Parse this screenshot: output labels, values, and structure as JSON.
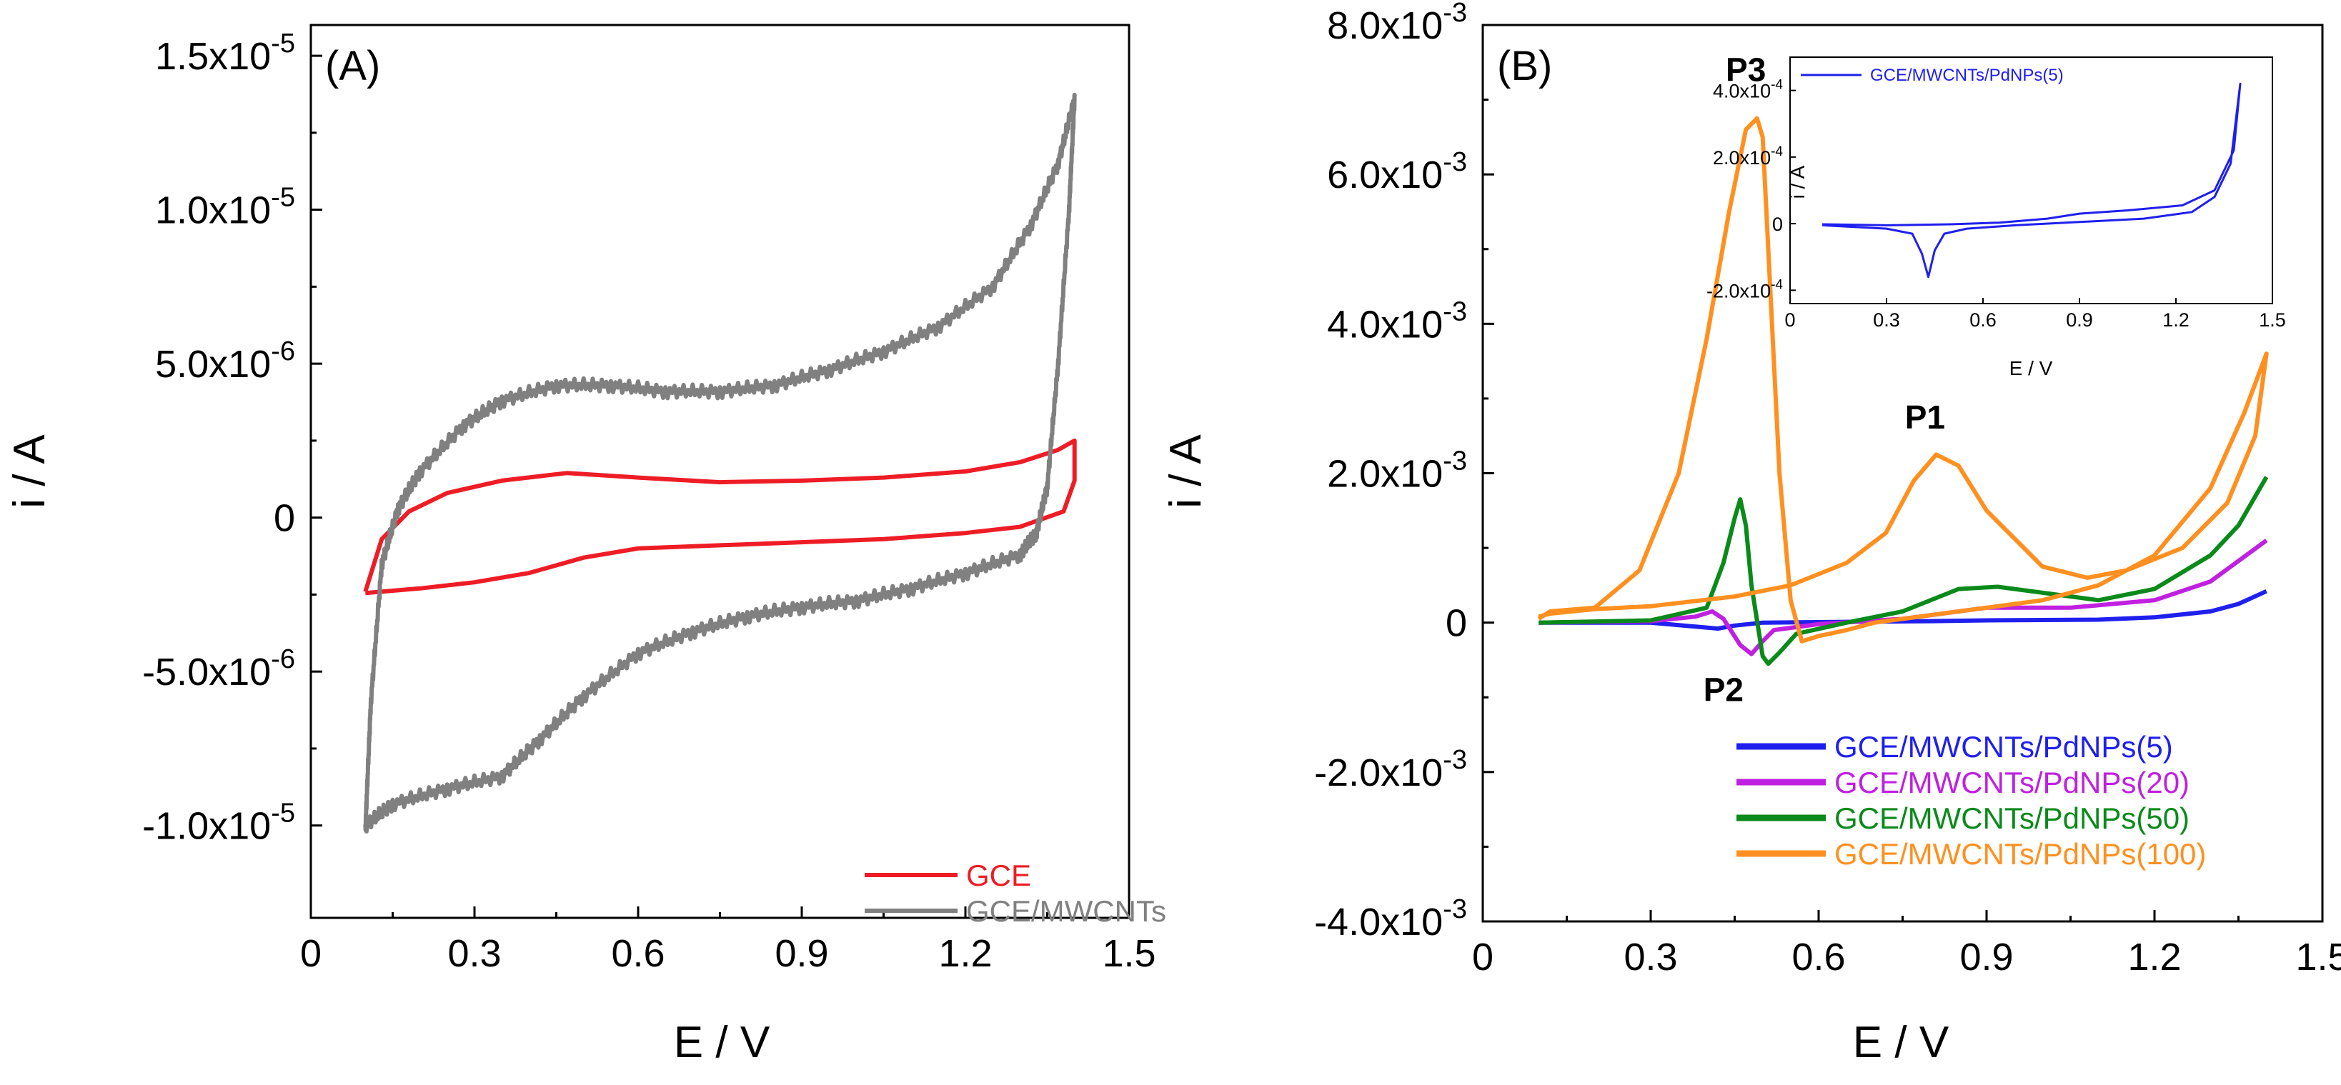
{
  "chart_data": [
    {
      "id": "A",
      "type": "line",
      "panel_label": "(A)",
      "xlabel": "E / V",
      "ylabel": "i / A",
      "xlim": [
        0,
        1.5
      ],
      "ylim": [
        -1.3e-05,
        1.6e-05
      ],
      "x_ticks": [
        0,
        0.3,
        0.6,
        0.9,
        1.2,
        1.5
      ],
      "x_tick_labels": [
        "0",
        "0.3",
        "0.6",
        "0.9",
        "1.2",
        "1.5"
      ],
      "y_ticks": [
        -1e-05,
        -5e-06,
        0,
        5e-06,
        1e-05,
        1.5e-05
      ],
      "y_tick_labels": [
        {
          "mantissa": "-1.0x10",
          "exp": "-5"
        },
        {
          "mantissa": "-5.0x10",
          "exp": "-6"
        },
        {
          "mantissa": "0",
          "exp": ""
        },
        {
          "mantissa": "5.0x10",
          "exp": "-6"
        },
        {
          "mantissa": "1.0x10",
          "exp": "-5"
        },
        {
          "mantissa": "1.5x10",
          "exp": "-5"
        }
      ],
      "legend_position": "bottom-right",
      "series": [
        {
          "name": "GCE",
          "color": "#ee1c25",
          "noise": 0,
          "points": [
            [
              0.1,
              -2.4e-06
            ],
            [
              0.13,
              -7e-07
            ],
            [
              0.18,
              2e-07
            ],
            [
              0.25,
              8e-07
            ],
            [
              0.35,
              1.2e-06
            ],
            [
              0.47,
              1.45e-06
            ],
            [
              0.6,
              1.3e-06
            ],
            [
              0.75,
              1.15e-06
            ],
            [
              0.9,
              1.2e-06
            ],
            [
              1.05,
              1.3e-06
            ],
            [
              1.2,
              1.5e-06
            ],
            [
              1.3,
              1.8e-06
            ],
            [
              1.37,
              2.2e-06
            ],
            [
              1.4,
              2.5e-06
            ],
            [
              1.4,
              1.2e-06
            ],
            [
              1.38,
              2e-07
            ],
            [
              1.3,
              -3e-07
            ],
            [
              1.2,
              -5e-07
            ],
            [
              1.05,
              -7e-07
            ],
            [
              0.9,
              -8e-07
            ],
            [
              0.75,
              -9e-07
            ],
            [
              0.6,
              -1e-06
            ],
            [
              0.5,
              -1.3e-06
            ],
            [
              0.4,
              -1.8e-06
            ],
            [
              0.3,
              -2.1e-06
            ],
            [
              0.2,
              -2.3e-06
            ],
            [
              0.1,
              -2.45e-06
            ]
          ]
        },
        {
          "name": "GCE/MWCNTs",
          "color": "#808080",
          "noise": 2.2e-07,
          "points": [
            [
              0.1,
              -1.01e-05
            ],
            [
              0.11,
              -6e-06
            ],
            [
              0.13,
              -1.5e-06
            ],
            [
              0.16,
              3e-07
            ],
            [
              0.2,
              1.5e-06
            ],
            [
              0.28,
              3e-06
            ],
            [
              0.35,
              3.8e-06
            ],
            [
              0.45,
              4.3e-06
            ],
            [
              0.55,
              4.3e-06
            ],
            [
              0.65,
              4.1e-06
            ],
            [
              0.75,
              4.1e-06
            ],
            [
              0.85,
              4.3e-06
            ],
            [
              0.95,
              4.8e-06
            ],
            [
              1.05,
              5.4e-06
            ],
            [
              1.15,
              6.2e-06
            ],
            [
              1.25,
              7.5e-06
            ],
            [
              1.32,
              9.5e-06
            ],
            [
              1.37,
              1.15e-05
            ],
            [
              1.4,
              1.36e-05
            ],
            [
              1.39,
              1e-05
            ],
            [
              1.37,
              5e-06
            ],
            [
              1.35,
              1e-06
            ],
            [
              1.33,
              -5e-07
            ],
            [
              1.3,
              -1.2e-06
            ],
            [
              1.2,
              -1.8e-06
            ],
            [
              1.1,
              -2.3e-06
            ],
            [
              1.0,
              -2.7e-06
            ],
            [
              0.9,
              -2.9e-06
            ],
            [
              0.8,
              -3.2e-06
            ],
            [
              0.7,
              -3.7e-06
            ],
            [
              0.6,
              -4.4e-06
            ],
            [
              0.5,
              -5.8e-06
            ],
            [
              0.42,
              -7.2e-06
            ],
            [
              0.35,
              -8.4e-06
            ],
            [
              0.25,
              -8.8e-06
            ],
            [
              0.15,
              -9.3e-06
            ],
            [
              0.1,
              -1e-05
            ]
          ]
        }
      ]
    },
    {
      "id": "B",
      "type": "line",
      "panel_label": "(B)",
      "xlabel": "E / V",
      "ylabel": "i / A",
      "xlim": [
        0,
        1.5
      ],
      "ylim": [
        -0.004,
        0.008
      ],
      "x_ticks": [
        0,
        0.3,
        0.6,
        0.9,
        1.2,
        1.5
      ],
      "x_tick_labels": [
        "0",
        "0.3",
        "0.6",
        "0.9",
        "1.2",
        "1.5"
      ],
      "y_ticks": [
        -0.004,
        -0.002,
        0,
        0.002,
        0.004,
        0.006,
        0.008
      ],
      "y_tick_labels": [
        {
          "mantissa": "-4.0x10",
          "exp": "-3"
        },
        {
          "mantissa": "-2.0x10",
          "exp": "-3"
        },
        {
          "mantissa": "0",
          "exp": ""
        },
        {
          "mantissa": "2.0x10",
          "exp": "-3"
        },
        {
          "mantissa": "4.0x10",
          "exp": "-3"
        },
        {
          "mantissa": "6.0x10",
          "exp": "-3"
        },
        {
          "mantissa": "8.0x10",
          "exp": "-3"
        }
      ],
      "legend_position": "bottom-right",
      "annotations": [
        {
          "text": "P3",
          "x": 0.47,
          "y": 0.00725
        },
        {
          "text": "P1",
          "x": 0.79,
          "y": 0.0026
        },
        {
          "text": "P2",
          "x": 0.43,
          "y": -0.00105
        }
      ],
      "series": [
        {
          "name": "GCE/MWCNTs/PdNPs(5)",
          "color": "#1f1fee",
          "points": [
            [
              0.1,
              0
            ],
            [
              0.3,
              0
            ],
            [
              0.42,
              -8e-05
            ],
            [
              0.45,
              -4e-05
            ],
            [
              0.5,
              0
            ],
            [
              0.8,
              2e-05
            ],
            [
              0.9,
              3e-05
            ],
            [
              1.1,
              4e-05
            ],
            [
              1.2,
              7e-05
            ],
            [
              1.3,
              0.00015
            ],
            [
              1.35,
              0.00025
            ],
            [
              1.4,
              0.00042
            ]
          ]
        },
        {
          "name": "GCE/MWCNTs/PdNPs(20)",
          "color": "#c020e0",
          "points": [
            [
              0.1,
              0
            ],
            [
              0.3,
              2e-05
            ],
            [
              0.38,
              8e-05
            ],
            [
              0.41,
              0.00015
            ],
            [
              0.43,
              5e-05
            ],
            [
              0.46,
              -0.0003
            ],
            [
              0.48,
              -0.00042
            ],
            [
              0.5,
              -0.00025
            ],
            [
              0.52,
              -0.0001
            ],
            [
              0.6,
              -2e-05
            ],
            [
              0.75,
              5e-05
            ],
            [
              0.9,
              0.0002
            ],
            [
              1.05,
              0.0002
            ],
            [
              1.2,
              0.0003
            ],
            [
              1.3,
              0.00055
            ],
            [
              1.4,
              0.0011
            ]
          ]
        },
        {
          "name": "GCE/MWCNTs/PdNPs(50)",
          "color": "#0a8a1a",
          "points": [
            [
              0.1,
              0
            ],
            [
              0.3,
              3e-05
            ],
            [
              0.4,
              0.0002
            ],
            [
              0.43,
              0.0008
            ],
            [
              0.45,
              0.0014
            ],
            [
              0.46,
              0.00165
            ],
            [
              0.47,
              0.0013
            ],
            [
              0.48,
              0.0005
            ],
            [
              0.5,
              -0.00045
            ],
            [
              0.51,
              -0.00055
            ],
            [
              0.53,
              -0.0004
            ],
            [
              0.56,
              -0.00015
            ],
            [
              0.65,
              0
            ],
            [
              0.75,
              0.00015
            ],
            [
              0.85,
              0.00045
            ],
            [
              0.92,
              0.00048
            ],
            [
              1.0,
              0.0004
            ],
            [
              1.1,
              0.0003
            ],
            [
              1.2,
              0.00045
            ],
            [
              1.3,
              0.0009
            ],
            [
              1.35,
              0.0013
            ],
            [
              1.4,
              0.00195
            ]
          ]
        },
        {
          "name": "GCE/MWCNTs/PdNPs(100)",
          "color": "#ff9020",
          "points": [
            [
              0.1,
              5e-05
            ],
            [
              0.12,
              0.00015
            ],
            [
              0.2,
              0.0002
            ],
            [
              0.28,
              0.0007
            ],
            [
              0.35,
              0.002
            ],
            [
              0.4,
              0.0038
            ],
            [
              0.44,
              0.0055
            ],
            [
              0.47,
              0.0066
            ],
            [
              0.49,
              0.00675
            ],
            [
              0.5,
              0.0065
            ],
            [
              0.51,
              0.005
            ],
            [
              0.53,
              0.002
            ],
            [
              0.55,
              0.0003
            ],
            [
              0.57,
              -0.00025
            ],
            [
              0.6,
              -0.00018
            ],
            [
              0.65,
              -0.0001
            ],
            [
              0.7,
              0
            ],
            [
              0.8,
              0.0001
            ],
            [
              0.9,
              0.0002
            ],
            [
              1.0,
              0.0003
            ],
            [
              1.1,
              0.0005
            ],
            [
              1.2,
              0.0009
            ],
            [
              1.3,
              0.0018
            ],
            [
              1.36,
              0.0028
            ],
            [
              1.4,
              0.0036
            ],
            [
              1.38,
              0.0025
            ],
            [
              1.33,
              0.0016
            ],
            [
              1.25,
              0.001
            ],
            [
              1.15,
              0.0007
            ],
            [
              1.08,
              0.0006
            ],
            [
              1.0,
              0.00075
            ],
            [
              0.9,
              0.0015
            ],
            [
              0.85,
              0.0021
            ],
            [
              0.81,
              0.00225
            ],
            [
              0.77,
              0.0019
            ],
            [
              0.72,
              0.0012
            ],
            [
              0.65,
              0.0008
            ],
            [
              0.55,
              0.0005
            ],
            [
              0.45,
              0.00035
            ],
            [
              0.3,
              0.00022
            ],
            [
              0.2,
              0.00018
            ],
            [
              0.12,
              0.00012
            ],
            [
              0.1,
              8e-05
            ]
          ]
        }
      ]
    },
    {
      "id": "B-inset",
      "type": "line",
      "xlabel": "E / V",
      "ylabel": "i / A",
      "xlim": [
        0,
        1.5
      ],
      "ylim": [
        -0.00024,
        0.0005
      ],
      "x_ticks": [
        0,
        0.3,
        0.6,
        0.9,
        1.2,
        1.5
      ],
      "x_tick_labels": [
        "0",
        "0.3",
        "0.6",
        "0.9",
        "1.2",
        "1.5"
      ],
      "y_ticks": [
        -0.0002,
        0,
        0.0002,
        0.0004
      ],
      "y_tick_labels": [
        {
          "mantissa": "-2.0x10",
          "exp": "-4"
        },
        {
          "mantissa": "0",
          "exp": ""
        },
        {
          "mantissa": "2.0x10",
          "exp": "-4"
        },
        {
          "mantissa": "4.0x10",
          "exp": "-4"
        }
      ],
      "legend_position": "top-left",
      "series": [
        {
          "name": "GCE/MWCNTs/PdNPs(5)",
          "color": "#1f1fee",
          "points": [
            [
              0.1,
              -5e-06
            ],
            [
              0.3,
              -1.5e-05
            ],
            [
              0.38,
              -3e-05
            ],
            [
              0.41,
              -9e-05
            ],
            [
              0.43,
              -0.00016
            ],
            [
              0.45,
              -8e-05
            ],
            [
              0.48,
              -3e-05
            ],
            [
              0.55,
              -1.5e-05
            ],
            [
              0.7,
              -5e-06
            ],
            [
              0.9,
              5e-06
            ],
            [
              1.1,
              1.5e-05
            ],
            [
              1.25,
              3.5e-05
            ],
            [
              1.32,
              8e-05
            ],
            [
              1.37,
              0.00018
            ],
            [
              1.4,
              0.00042
            ],
            [
              1.38,
              0.00022
            ],
            [
              1.32,
              0.0001
            ],
            [
              1.22,
              5.5e-05
            ],
            [
              1.05,
              4e-05
            ],
            [
              0.9,
              3e-05
            ],
            [
              0.8,
              1.5e-05
            ],
            [
              0.65,
              3e-06
            ],
            [
              0.5,
              -2e-06
            ],
            [
              0.3,
              -5e-06
            ],
            [
              0.1,
              -2e-06
            ]
          ]
        }
      ]
    }
  ]
}
